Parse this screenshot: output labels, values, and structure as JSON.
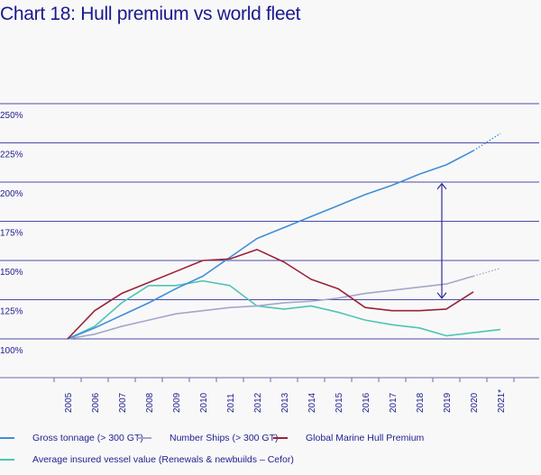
{
  "title": "Chart 18: Hull premium vs world fleet",
  "chart_data": {
    "type": "line",
    "title": "Chart 18: Hull premium vs world fleet",
    "xlabel": "",
    "ylabel": "",
    "categories": [
      "2005",
      "2006",
      "2007",
      "2008",
      "2009",
      "2010",
      "2011",
      "2012",
      "2013",
      "2014",
      "2015",
      "2016",
      "2017",
      "2018",
      "2019",
      "2020",
      "2021*"
    ],
    "y_ticks": [
      "100%",
      "125%",
      "150%",
      "175%",
      "200%",
      "225%",
      "250%"
    ],
    "y_tick_values": [
      100,
      125,
      150,
      175,
      200,
      225,
      250
    ],
    "ylim": [
      75,
      250
    ],
    "grid": true,
    "legend_position": "bottom",
    "series": [
      {
        "name": "Gross tonnage (> 300 GT)",
        "color": "#3f8fd6",
        "values": [
          100,
          107,
          115,
          123,
          132,
          140,
          152,
          164,
          171,
          178,
          185,
          192,
          198,
          205,
          211,
          220,
          231
        ],
        "projected_from_index": 15
      },
      {
        "name": "Number Ships (> 300 GT)",
        "color": "#a3a7c9",
        "values": [
          100,
          103,
          108,
          112,
          116,
          118,
          120,
          121,
          123,
          124,
          126,
          129,
          131,
          133,
          135,
          140,
          145
        ],
        "projected_from_index": 15
      },
      {
        "name": "Global Marine Hull Premium",
        "color": "#9b2335",
        "values": [
          100,
          118,
          129,
          136,
          143,
          150,
          151,
          157,
          149,
          138,
          132,
          120,
          118,
          118,
          119,
          130,
          null
        ],
        "projected_from_index": null
      },
      {
        "name": "Average insured vessel value (Renewals & newbuilds – Cefor)",
        "color": "#4fc4b4",
        "values": [
          100,
          108,
          123,
          134,
          134,
          137,
          134,
          121,
          119,
          121,
          117,
          112,
          109,
          107,
          102,
          104,
          106
        ],
        "projected_from_index": null
      }
    ],
    "annotations": [
      {
        "type": "double-arrow",
        "x": "2019",
        "y_from": 199,
        "y_to": 126,
        "color": "#2e2e96",
        "description": "gap between gross tonnage and hull premium"
      }
    ]
  },
  "colors": {
    "text": "#1e1e8c",
    "grid": "#4b4ba8",
    "axis": "#6a6aa8"
  }
}
